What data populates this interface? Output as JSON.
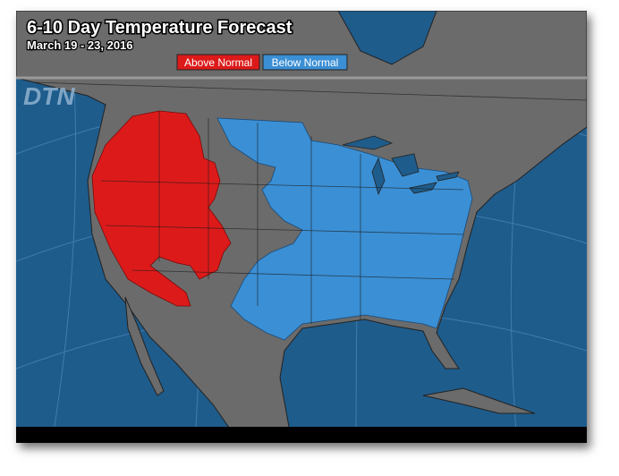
{
  "header": {
    "title": "6-10 Day Temperature Forecast",
    "subtitle": "March 19 - 23, 2016"
  },
  "legend": [
    {
      "label": "Above Normal"
    },
    {
      "label": "Below Normal"
    }
  ],
  "logo": "DTN"
}
